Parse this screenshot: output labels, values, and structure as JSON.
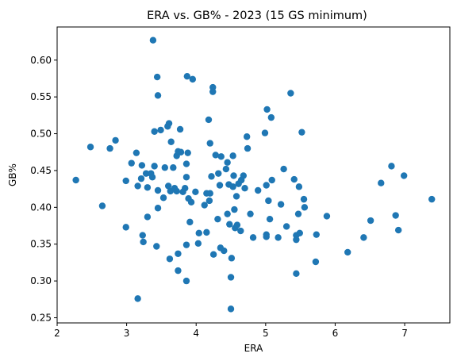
{
  "chart_data": {
    "type": "scatter",
    "title": "ERA vs. GB% - 2023 (15 GS minimum)",
    "xlabel": "ERA",
    "ylabel": "GB%",
    "xlim": [
      2.0,
      7.65
    ],
    "ylim": [
      0.243,
      0.645
    ],
    "xticks": [
      2,
      3,
      4,
      5,
      6,
      7
    ],
    "xtick_labels": [
      "2",
      "3",
      "4",
      "5",
      "6",
      "7"
    ],
    "yticks": [
      0.25,
      0.3,
      0.35,
      0.4,
      0.45,
      0.5,
      0.55,
      0.6
    ],
    "ytick_labels": [
      "0.25",
      "0.30",
      "0.35",
      "0.40",
      "0.45",
      "0.50",
      "0.55",
      "0.60"
    ],
    "grid": false,
    "marker_color": "#1f77b4",
    "points": [
      {
        "x": 2.27,
        "y": 0.437
      },
      {
        "x": 2.48,
        "y": 0.482
      },
      {
        "x": 2.65,
        "y": 0.402
      },
      {
        "x": 2.76,
        "y": 0.48
      },
      {
        "x": 2.84,
        "y": 0.491
      },
      {
        "x": 2.99,
        "y": 0.436
      },
      {
        "x": 2.99,
        "y": 0.373
      },
      {
        "x": 3.07,
        "y": 0.46
      },
      {
        "x": 3.14,
        "y": 0.474
      },
      {
        "x": 3.16,
        "y": 0.429
      },
      {
        "x": 3.16,
        "y": 0.276
      },
      {
        "x": 3.21,
        "y": 0.439
      },
      {
        "x": 3.22,
        "y": 0.457
      },
      {
        "x": 3.23,
        "y": 0.362
      },
      {
        "x": 3.24,
        "y": 0.353
      },
      {
        "x": 3.28,
        "y": 0.446
      },
      {
        "x": 3.3,
        "y": 0.427
      },
      {
        "x": 3.3,
        "y": 0.387
      },
      {
        "x": 3.35,
        "y": 0.446
      },
      {
        "x": 3.37,
        "y": 0.441
      },
      {
        "x": 3.38,
        "y": 0.627
      },
      {
        "x": 3.4,
        "y": 0.503
      },
      {
        "x": 3.4,
        "y": 0.456
      },
      {
        "x": 3.43,
        "y": 0.347
      },
      {
        "x": 3.44,
        "y": 0.577
      },
      {
        "x": 3.45,
        "y": 0.552
      },
      {
        "x": 3.45,
        "y": 0.423
      },
      {
        "x": 3.45,
        "y": 0.399
      },
      {
        "x": 3.49,
        "y": 0.505
      },
      {
        "x": 3.53,
        "y": 0.413
      },
      {
        "x": 3.55,
        "y": 0.454
      },
      {
        "x": 3.59,
        "y": 0.51
      },
      {
        "x": 3.6,
        "y": 0.429
      },
      {
        "x": 3.61,
        "y": 0.514
      },
      {
        "x": 3.62,
        "y": 0.33
      },
      {
        "x": 3.63,
        "y": 0.422
      },
      {
        "x": 3.64,
        "y": 0.489
      },
      {
        "x": 3.67,
        "y": 0.454
      },
      {
        "x": 3.69,
        "y": 0.426
      },
      {
        "x": 3.72,
        "y": 0.422
      },
      {
        "x": 3.72,
        "y": 0.47
      },
      {
        "x": 3.74,
        "y": 0.476
      },
      {
        "x": 3.74,
        "y": 0.337
      },
      {
        "x": 3.74,
        "y": 0.314
      },
      {
        "x": 3.77,
        "y": 0.506
      },
      {
        "x": 3.78,
        "y": 0.475
      },
      {
        "x": 3.81,
        "y": 0.421
      },
      {
        "x": 3.84,
        "y": 0.426
      },
      {
        "x": 3.86,
        "y": 0.459
      },
      {
        "x": 3.86,
        "y": 0.441
      },
      {
        "x": 3.86,
        "y": 0.349
      },
      {
        "x": 3.86,
        "y": 0.3
      },
      {
        "x": 3.87,
        "y": 0.578
      },
      {
        "x": 3.88,
        "y": 0.474
      },
      {
        "x": 3.89,
        "y": 0.412
      },
      {
        "x": 3.91,
        "y": 0.38
      },
      {
        "x": 3.93,
        "y": 0.407
      },
      {
        "x": 3.95,
        "y": 0.574
      },
      {
        "x": 3.99,
        "y": 0.421
      },
      {
        "x": 4.03,
        "y": 0.351
      },
      {
        "x": 4.04,
        "y": 0.365
      },
      {
        "x": 4.12,
        "y": 0.403
      },
      {
        "x": 4.15,
        "y": 0.366
      },
      {
        "x": 4.15,
        "y": 0.419
      },
      {
        "x": 4.18,
        "y": 0.519
      },
      {
        "x": 4.19,
        "y": 0.409
      },
      {
        "x": 4.2,
        "y": 0.487
      },
      {
        "x": 4.2,
        "y": 0.419
      },
      {
        "x": 4.22,
        "y": 0.442
      },
      {
        "x": 4.24,
        "y": 0.563
      },
      {
        "x": 4.24,
        "y": 0.557
      },
      {
        "x": 4.25,
        "y": 0.336
      },
      {
        "x": 4.28,
        "y": 0.471
      },
      {
        "x": 4.31,
        "y": 0.384
      },
      {
        "x": 4.32,
        "y": 0.446
      },
      {
        "x": 4.34,
        "y": 0.43
      },
      {
        "x": 4.35,
        "y": 0.345
      },
      {
        "x": 4.36,
        "y": 0.469
      },
      {
        "x": 4.4,
        "y": 0.341
      },
      {
        "x": 4.43,
        "y": 0.452
      },
      {
        "x": 4.45,
        "y": 0.391
      },
      {
        "x": 4.45,
        "y": 0.461
      },
      {
        "x": 4.47,
        "y": 0.431
      },
      {
        "x": 4.48,
        "y": 0.377
      },
      {
        "x": 4.5,
        "y": 0.305
      },
      {
        "x": 4.5,
        "y": 0.262
      },
      {
        "x": 4.51,
        "y": 0.331
      },
      {
        "x": 4.53,
        "y": 0.47
      },
      {
        "x": 4.53,
        "y": 0.428
      },
      {
        "x": 4.54,
        "y": 0.443
      },
      {
        "x": 4.55,
        "y": 0.397
      },
      {
        "x": 4.56,
        "y": 0.372
      },
      {
        "x": 4.58,
        "y": 0.415
      },
      {
        "x": 4.59,
        "y": 0.376
      },
      {
        "x": 4.61,
        "y": 0.432
      },
      {
        "x": 4.64,
        "y": 0.368
      },
      {
        "x": 4.65,
        "y": 0.437
      },
      {
        "x": 4.68,
        "y": 0.443
      },
      {
        "x": 4.7,
        "y": 0.426
      },
      {
        "x": 4.73,
        "y": 0.496
      },
      {
        "x": 4.74,
        "y": 0.48
      },
      {
        "x": 4.78,
        "y": 0.391
      },
      {
        "x": 4.82,
        "y": 0.359
      },
      {
        "x": 4.89,
        "y": 0.423
      },
      {
        "x": 4.99,
        "y": 0.501
      },
      {
        "x": 5.01,
        "y": 0.43
      },
      {
        "x": 5.01,
        "y": 0.363
      },
      {
        "x": 5.01,
        "y": 0.36
      },
      {
        "x": 5.02,
        "y": 0.533
      },
      {
        "x": 5.04,
        "y": 0.409
      },
      {
        "x": 5.06,
        "y": 0.384
      },
      {
        "x": 5.08,
        "y": 0.522
      },
      {
        "x": 5.09,
        "y": 0.437
      },
      {
        "x": 5.18,
        "y": 0.359
      },
      {
        "x": 5.22,
        "y": 0.404
      },
      {
        "x": 5.26,
        "y": 0.452
      },
      {
        "x": 5.3,
        "y": 0.374
      },
      {
        "x": 5.36,
        "y": 0.555
      },
      {
        "x": 5.41,
        "y": 0.438
      },
      {
        "x": 5.44,
        "y": 0.362
      },
      {
        "x": 5.44,
        "y": 0.356
      },
      {
        "x": 5.44,
        "y": 0.31
      },
      {
        "x": 5.47,
        "y": 0.391
      },
      {
        "x": 5.48,
        "y": 0.428
      },
      {
        "x": 5.49,
        "y": 0.365
      },
      {
        "x": 5.52,
        "y": 0.502
      },
      {
        "x": 5.55,
        "y": 0.411
      },
      {
        "x": 5.56,
        "y": 0.4
      },
      {
        "x": 5.72,
        "y": 0.326
      },
      {
        "x": 5.73,
        "y": 0.363
      },
      {
        "x": 5.88,
        "y": 0.388
      },
      {
        "x": 6.18,
        "y": 0.339
      },
      {
        "x": 6.41,
        "y": 0.359
      },
      {
        "x": 6.51,
        "y": 0.382
      },
      {
        "x": 6.66,
        "y": 0.433
      },
      {
        "x": 6.81,
        "y": 0.456
      },
      {
        "x": 6.87,
        "y": 0.389
      },
      {
        "x": 6.91,
        "y": 0.369
      },
      {
        "x": 6.99,
        "y": 0.443
      },
      {
        "x": 7.39,
        "y": 0.411
      }
    ]
  }
}
